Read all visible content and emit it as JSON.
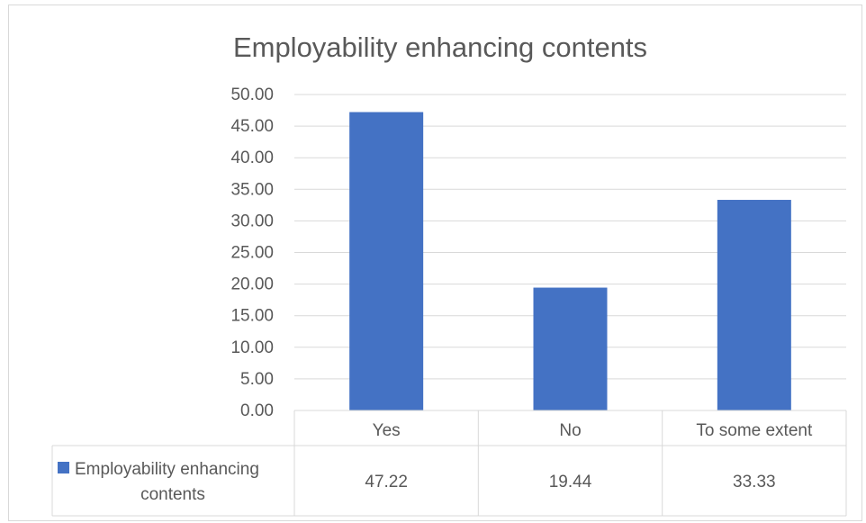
{
  "chart_data": {
    "type": "bar",
    "title": "Employability enhancing contents",
    "categories": [
      "Yes",
      "No",
      "To some extent"
    ],
    "series": [
      {
        "name": "Employability enhancing contents",
        "values": [
          47.22,
          19.44,
          33.33
        ],
        "color": "#4472c4"
      }
    ],
    "value_labels": [
      "47.22",
      "19.44",
      "33.33"
    ],
    "ylim": [
      0,
      50
    ],
    "yticks": [
      "0.00",
      "5.00",
      "10.00",
      "15.00",
      "20.00",
      "25.00",
      "30.00",
      "35.00",
      "40.00",
      "45.00",
      "50.00"
    ],
    "grid": true,
    "legend": "data-table"
  }
}
